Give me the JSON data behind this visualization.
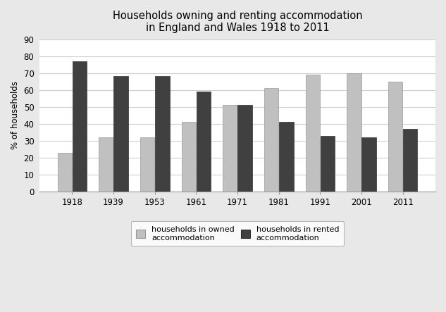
{
  "title": "Households owning and renting accommodation\nin England and Wales 1918 to 2011",
  "years": [
    "1918",
    "1939",
    "1953",
    "1961",
    "1971",
    "1981",
    "1991",
    "2001",
    "2011"
  ],
  "owned": [
    23,
    32,
    32,
    41,
    51,
    61,
    69,
    70,
    65
  ],
  "rented": [
    77,
    68,
    68,
    59,
    51,
    41,
    33,
    32,
    37
  ],
  "owned_color": "#c0c0c0",
  "rented_color": "#404040",
  "ylabel": "% of households",
  "ylim": [
    0,
    90
  ],
  "yticks": [
    0,
    10,
    20,
    30,
    40,
    50,
    60,
    70,
    80,
    90
  ],
  "legend_owned": "households in owned\naccommodation",
  "legend_rented": "households in rented\naccommodation",
  "plot_bg_color": "#ffffff",
  "fig_bg_color": "#e8e8e8",
  "grid_color": "#d0d0d0",
  "title_fontsize": 10.5,
  "label_fontsize": 8.5,
  "tick_fontsize": 8.5,
  "bar_width": 0.35,
  "bar_gap": 0.01
}
